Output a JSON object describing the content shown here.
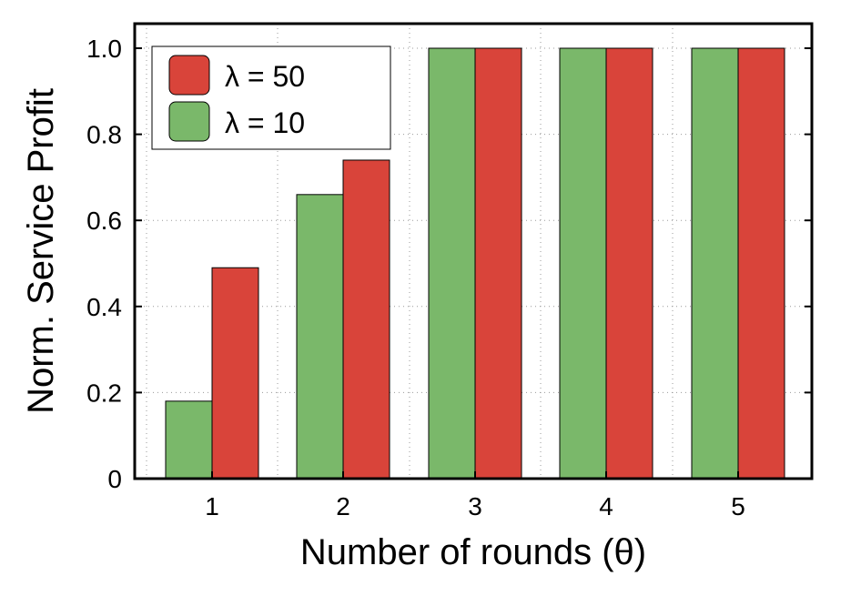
{
  "colors": {
    "series_red": "#d9443a",
    "series_green": "#7ab86a",
    "grid": "#999999",
    "axis": "#000000"
  },
  "chart_data": {
    "type": "bar",
    "categories": [
      "1",
      "2",
      "3",
      "4",
      "5"
    ],
    "series": [
      {
        "name": "λ = 10",
        "color": "#7ab86a",
        "values": [
          0.18,
          0.66,
          1.0,
          1.0,
          1.0
        ]
      },
      {
        "name": "λ = 50",
        "color": "#d9443a",
        "values": [
          0.49,
          0.74,
          1.0,
          1.0,
          1.0
        ]
      }
    ],
    "xlabel": "Number of rounds (θ)",
    "ylabel": "Norm. Service Profit",
    "ylim": [
      0,
      1.0
    ],
    "yticks": [
      0,
      0.2,
      0.4,
      0.6,
      0.8,
      1.0
    ],
    "ytick_labels": [
      "0",
      "0.2",
      "0.4",
      "0.6",
      "0.8",
      "1.0"
    ],
    "grid": true,
    "legend": {
      "placement": "top-left",
      "entries": [
        "λ = 50",
        "λ = 10"
      ]
    }
  }
}
